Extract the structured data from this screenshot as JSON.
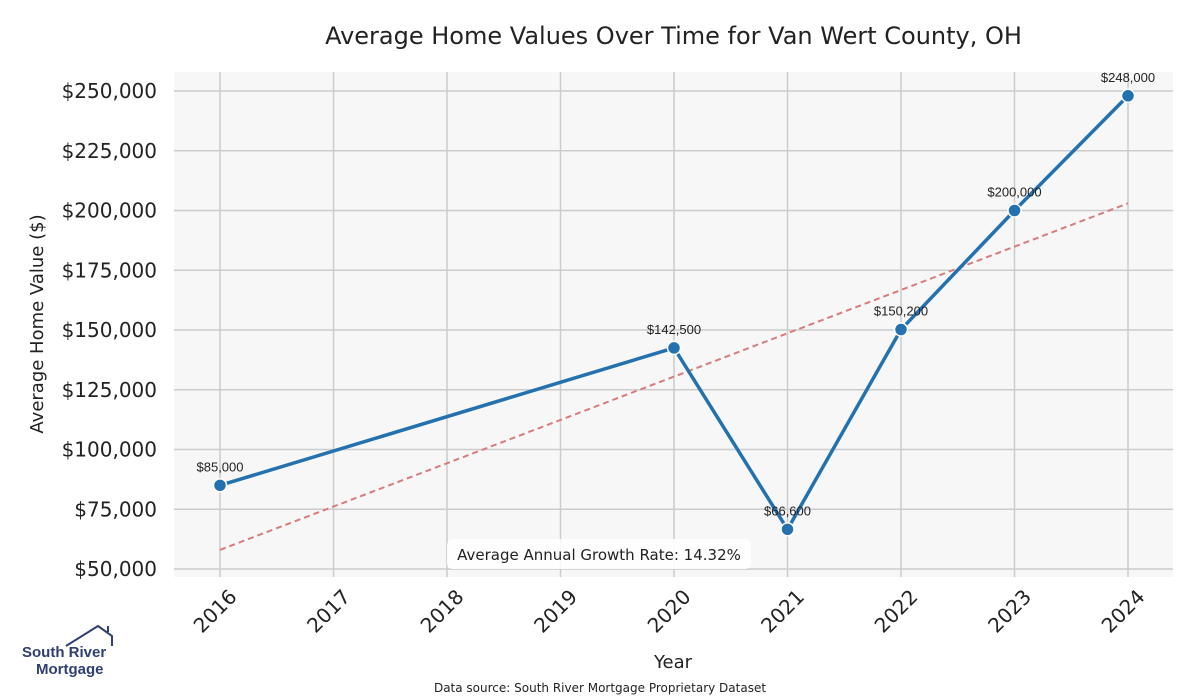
{
  "chart_data": {
    "type": "line",
    "title": "Average Home Values Over Time for Van Wert County, OH",
    "xlabel": "Year",
    "ylabel": "Average Home Value ($)",
    "categories": [
      "2016",
      "2017",
      "2018",
      "2019",
      "2020",
      "2021",
      "2022",
      "2023",
      "2024"
    ],
    "ylim": [
      50000,
      258000
    ],
    "yticks": [
      50000,
      75000,
      100000,
      125000,
      150000,
      175000,
      200000,
      225000,
      250000
    ],
    "ytick_labels": [
      "$50,000",
      "$75,000",
      "$100,000",
      "$125,000",
      "$150,000",
      "$175,000",
      "$200,000",
      "$225,000",
      "$250,000"
    ],
    "grid": true,
    "series": [
      {
        "name": "Average Home Value",
        "color": "#2471b0",
        "x": [
          2016,
          2020,
          2021,
          2022,
          2023,
          2024
        ],
        "values": [
          85000,
          142500,
          66600,
          150200,
          200000,
          248000
        ],
        "labels": [
          "$85,000",
          "$142,500",
          "$66,600",
          "$150,200",
          "$200,000",
          "$248,000"
        ]
      },
      {
        "name": "Trend",
        "color": "#d97b7b",
        "style": "dashed",
        "x": [
          2016,
          2024
        ],
        "values": [
          58000,
          203000
        ]
      }
    ],
    "annotation": "Average Annual Growth Rate: 14.32%",
    "source": "Data source: South River Mortgage Proprietary Dataset"
  },
  "logo": {
    "line1": "South River",
    "line2": "Mortgage",
    "color": "#2f3f72"
  }
}
